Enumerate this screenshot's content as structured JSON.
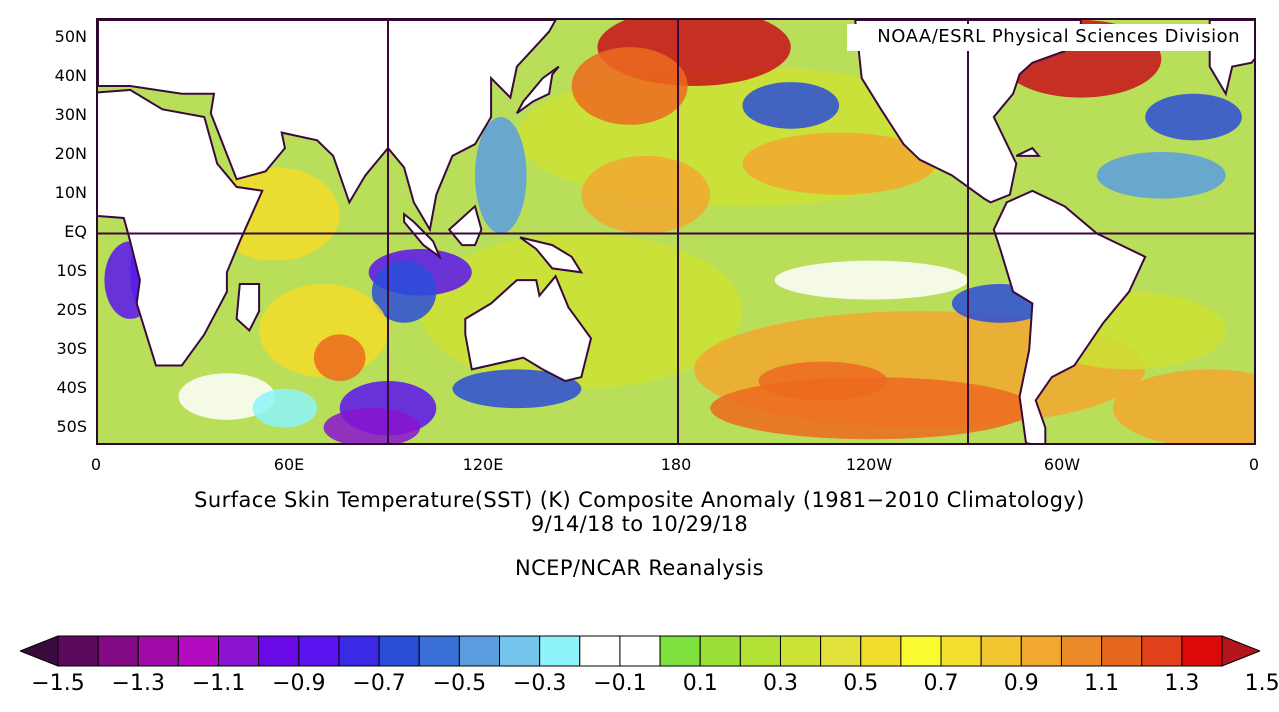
{
  "credit": "NOAA/ESRL Physical Sciences Division",
  "lat_ticks": [
    "50N",
    "40N",
    "30N",
    "20N",
    "10N",
    "EQ",
    "10S",
    "20S",
    "30S",
    "40S",
    "50S"
  ],
  "lon_ticks": [
    "0",
    "60E",
    "120E",
    "180",
    "120W",
    "60W",
    "0"
  ],
  "title": {
    "line1": "Surface Skin Temperature(SST) (K) Composite Anomaly (1981−2010 Climatology)",
    "line2": "9/14/18  to 10/29/18",
    "line3": "NCEP/NCAR Reanalysis"
  },
  "colorbar": {
    "labels": [
      "−1.5",
      "−1.3",
      "−1.1",
      "−0.9",
      "−0.7",
      "−0.5",
      "−0.3",
      "−0.1",
      "0.1",
      "0.3",
      "0.5",
      "0.7",
      "0.9",
      "1.1",
      "1.3",
      "1.5"
    ],
    "colors": [
      "#3a0a3c",
      "#5c0a5e",
      "#820a84",
      "#a00aa6",
      "#b40ac0",
      "#8a14d0",
      "#6a0ae6",
      "#5a14f0",
      "#3a2ae6",
      "#2a4ed8",
      "#3a70d6",
      "#5a9ee0",
      "#74c4ee",
      "#8cf4fa",
      "#ffffff",
      "#ffffff",
      "#7ee03c",
      "#9ae038",
      "#b2e034",
      "#cce234",
      "#e2e23a",
      "#f2dc2a",
      "#fafa30",
      "#f4de2e",
      "#f2c630",
      "#f2a830",
      "#ec8a2a",
      "#e6661e",
      "#e2401a",
      "#dc0a0a",
      "#b4141c"
    ]
  },
  "map": {
    "lat_range": [
      -55,
      55
    ],
    "lon_range": [
      0,
      360
    ],
    "palette": {
      "warm_dark": "#c8101a",
      "warm": "#ec6a1e",
      "orange": "#f2a830",
      "yellow": "#f2dc2a",
      "ygreen": "#cce234",
      "green": "#9ae038",
      "white": "#ffffff",
      "cyan": "#8cf4fa",
      "lightblue": "#5a9ee0",
      "blue": "#2a4ed8",
      "purple": "#5a14f0",
      "deep_purple": "#8a14d0",
      "land": "#ffffff",
      "coast": "#3a0a3c"
    }
  }
}
